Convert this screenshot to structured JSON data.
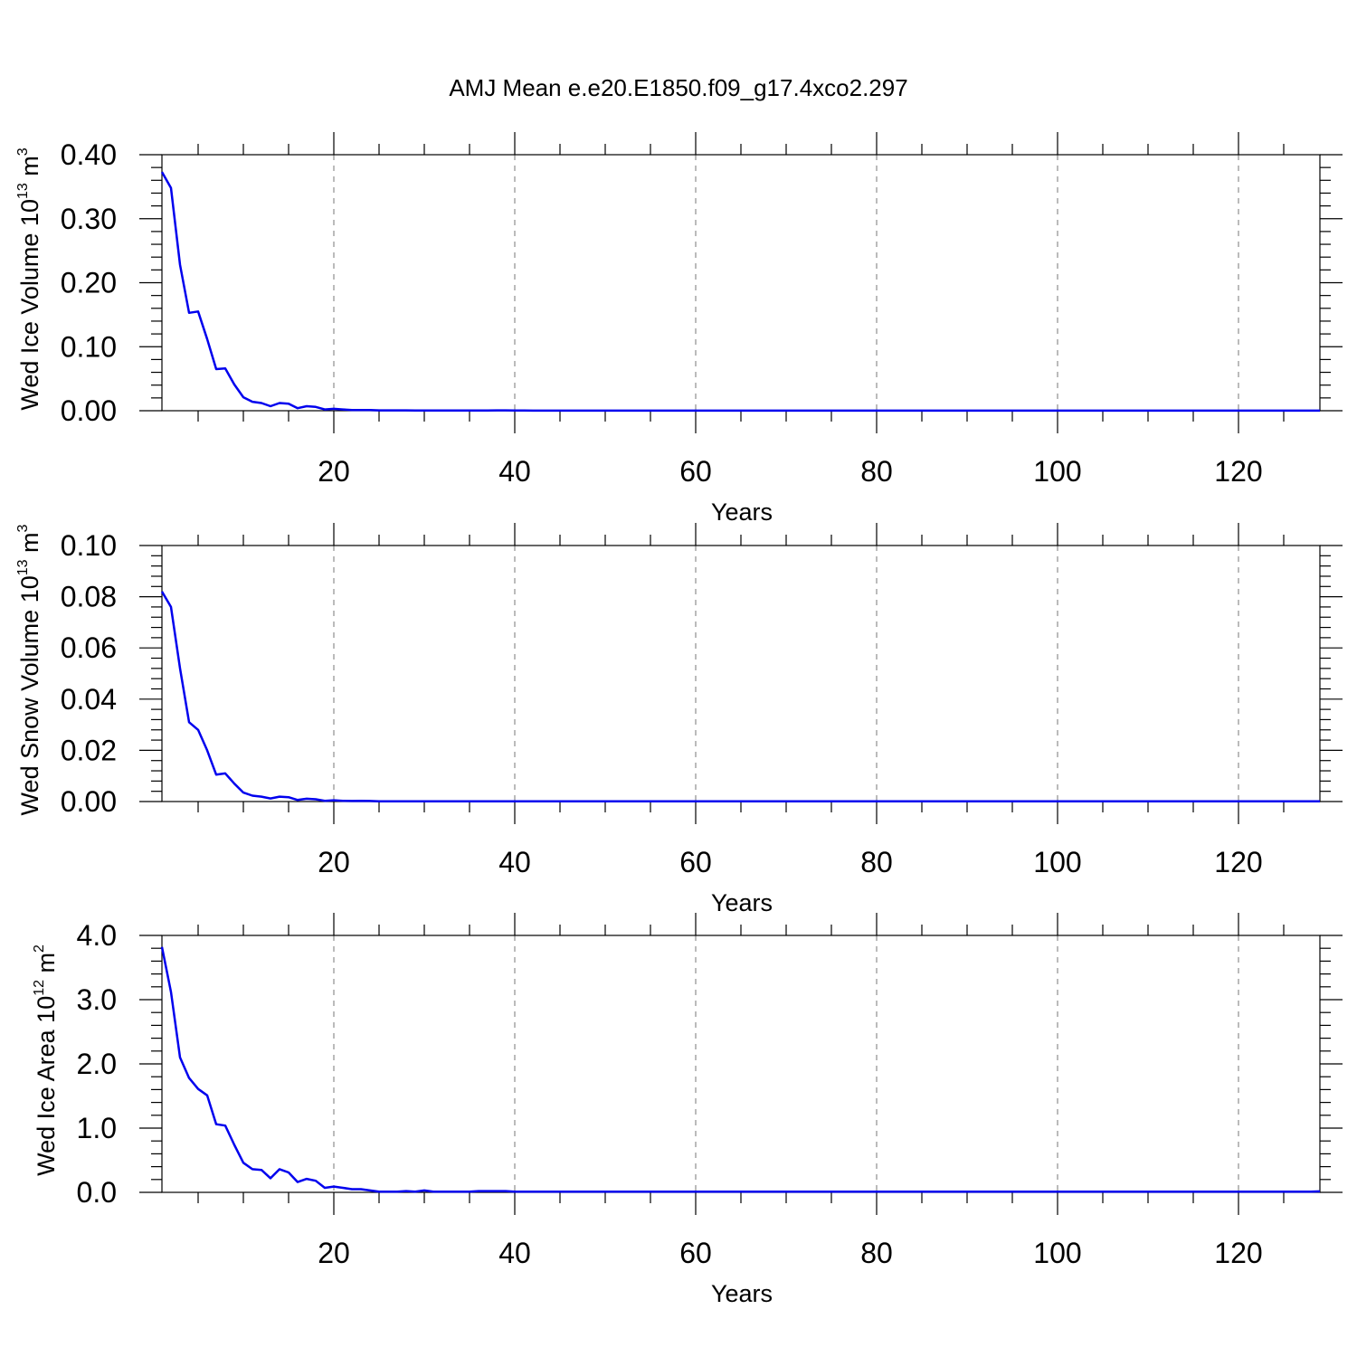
{
  "title": "AMJ Mean e.e20.E1850.f09_g17.4xco2.297",
  "colors": {
    "series": "#0000ee",
    "axis": "#000000",
    "grid": "#777777"
  },
  "chart_data": [
    {
      "type": "line",
      "xlabel": "Years",
      "ylabel": {
        "text": "Wed Ice Volume 10",
        "exp": "13",
        "unit": " m",
        "unit_exp": "3"
      },
      "xlim": [
        1,
        129
      ],
      "ylim": [
        0,
        0.4
      ],
      "xticks": [
        20,
        40,
        60,
        80,
        100,
        120
      ],
      "yticks": [
        "0.00",
        "0.10",
        "0.20",
        "0.30",
        "0.40"
      ],
      "grid": "vertical dashed at major x ticks",
      "series": [
        {
          "values": [
            0.373,
            0.348,
            0.228,
            0.153,
            0.155,
            0.112,
            0.065,
            0.066,
            0.041,
            0.021,
            0.014,
            0.012,
            0.007,
            0.012,
            0.011,
            0.004,
            0.007,
            0.006,
            0.002,
            0.003,
            0.002,
            0.001,
            0.001,
            0.001,
            0.0005,
            0.0005,
            0.0005,
            0.0005,
            0.0004,
            0.0004,
            0.0003,
            0.0003,
            0.0003,
            0.0003,
            0.0003,
            0.0003,
            0.0004,
            0.0005,
            0.0005,
            0.0004,
            0.0003,
            0.0002,
            0.0002,
            0.0002,
            0.0002,
            0.0002,
            0.0002,
            0.0002,
            0.0002,
            0.0002,
            0.0002,
            0.0002,
            0.0002,
            0.0002,
            0.0002,
            0.0002,
            0.0002,
            0.0002,
            0.0002,
            0.0002,
            0.0002,
            0.0002,
            0.0002,
            0.0002,
            0.0002,
            0.0002,
            0.0002,
            0.0002,
            0.0002,
            0.0002,
            0.0002,
            0.0002,
            0.0002,
            0.0002,
            0.0002,
            0.0002,
            0.0002,
            0.0002,
            0.0002,
            0.0002,
            0.0002,
            0.0002,
            0.0002,
            0.0002,
            0.0002,
            0.0002,
            0.0002,
            0.0002,
            0.0002,
            0.0002,
            0.0002,
            0.0002,
            0.0002,
            0.0002,
            0.0002,
            0.0002,
            0.0002,
            0.0002,
            0.0002,
            0.0002,
            0.0002,
            0.0002,
            0.0002,
            0.0002,
            0.0002,
            0.0002,
            0.0002,
            0.0002,
            0.0002,
            0.0002,
            0.0002,
            0.0002,
            0.0002,
            0.0002,
            0.0002,
            0.0002,
            0.0002,
            0.0002,
            0.0002,
            0.0002,
            0.0002,
            0.0002,
            0.0002,
            0.0002,
            0.0002,
            0.0002,
            0.0002,
            0.0002,
            0.0002
          ]
        }
      ]
    },
    {
      "type": "line",
      "xlabel": "Years",
      "ylabel": {
        "text": "Wed Snow Volume 10",
        "exp": "13",
        "unit": " m",
        "unit_exp": "3"
      },
      "xlim": [
        1,
        129
      ],
      "ylim": [
        0,
        0.1
      ],
      "xticks": [
        20,
        40,
        60,
        80,
        100,
        120
      ],
      "yticks": [
        "0.00",
        "0.02",
        "0.04",
        "0.06",
        "0.08",
        "0.10"
      ],
      "grid": "vertical dashed at major x ticks",
      "series": [
        {
          "values": [
            0.082,
            0.076,
            0.052,
            0.031,
            0.028,
            0.02,
            0.0105,
            0.011,
            0.007,
            0.0035,
            0.0023,
            0.0019,
            0.0012,
            0.0019,
            0.0017,
            0.0006,
            0.0011,
            0.0009,
            0.0003,
            0.0005,
            0.0003,
            0.0002,
            0.0003,
            0.0002,
            0.0001,
            0.0001,
            0.0001,
            0.0001,
            0.0001,
            0.0001,
            0.0001,
            0.0001,
            0.0001,
            0.0001,
            0.0001,
            0.0001,
            0.0001,
            0.0001,
            0.0001,
            0.0001,
            0.0001,
            0.0001,
            0.0001,
            0.0001,
            0.0001,
            0.0001,
            0.0001,
            0.0001,
            0.0001,
            0.0001,
            0.0001,
            0.0001,
            0.0001,
            0.0001,
            0.0001,
            0.0001,
            0.0001,
            0.0001,
            0.0001,
            0.0001,
            0.0001,
            0.0001,
            0.0001,
            0.0001,
            0.0001,
            0.0001,
            0.0001,
            0.0001,
            0.0001,
            0.0001,
            0.0001,
            0.0001,
            0.0001,
            0.0001,
            0.0001,
            0.0001,
            0.0001,
            0.0001,
            0.0001,
            0.0001,
            0.0001,
            0.0001,
            0.0001,
            0.0001,
            0.0001,
            0.0001,
            0.0001,
            0.0001,
            0.0001,
            0.0001,
            0.0001,
            0.0001,
            0.0001,
            0.0001,
            0.0001,
            0.0001,
            0.0001,
            0.0001,
            0.0001,
            0.0001,
            0.0001,
            0.0001,
            0.0001,
            0.0001,
            0.0001,
            0.0001,
            0.0001,
            0.0001,
            0.0001,
            0.0001,
            0.0001,
            0.0001,
            0.0001,
            0.0001,
            0.0001,
            0.0001,
            0.0001,
            0.0001,
            0.0001,
            0.0001,
            0.0001,
            0.0001,
            0.0001,
            0.0001,
            0.0001,
            0.0001,
            0.0001,
            0.0001,
            0.0001
          ]
        }
      ]
    },
    {
      "type": "line",
      "xlabel": "Years",
      "ylabel": {
        "text": "Wed Ice Area 10",
        "exp": "12",
        "unit": " m",
        "unit_exp": "2"
      },
      "xlim": [
        1,
        129
      ],
      "ylim": [
        0,
        4.0
      ],
      "xticks": [
        20,
        40,
        60,
        80,
        100,
        120
      ],
      "yticks": [
        "0.0",
        "1.0",
        "2.0",
        "3.0",
        "4.0"
      ],
      "grid": "vertical dashed at major x ticks",
      "series": [
        {
          "values": [
            3.82,
            3.12,
            2.1,
            1.78,
            1.61,
            1.51,
            1.06,
            1.04,
            0.74,
            0.46,
            0.36,
            0.35,
            0.22,
            0.36,
            0.31,
            0.16,
            0.21,
            0.18,
            0.07,
            0.09,
            0.07,
            0.05,
            0.05,
            0.03,
            0.01,
            0.01,
            0.01,
            0.02,
            0.01,
            0.03,
            0.01,
            0.01,
            0.01,
            0.01,
            0.01,
            0.02,
            0.02,
            0.02,
            0.02,
            0.01,
            0.01,
            0.01,
            0.01,
            0.01,
            0.01,
            0.01,
            0.01,
            0.01,
            0.01,
            0.01,
            0.01,
            0.01,
            0.01,
            0.01,
            0.01,
            0.01,
            0.01,
            0.01,
            0.01,
            0.01,
            0.01,
            0.01,
            0.01,
            0.01,
            0.01,
            0.01,
            0.01,
            0.01,
            0.01,
            0.01,
            0.01,
            0.01,
            0.01,
            0.01,
            0.01,
            0.01,
            0.01,
            0.01,
            0.01,
            0.01,
            0.01,
            0.01,
            0.01,
            0.01,
            0.01,
            0.01,
            0.01,
            0.01,
            0.01,
            0.01,
            0.01,
            0.01,
            0.01,
            0.01,
            0.01,
            0.01,
            0.01,
            0.01,
            0.01,
            0.01,
            0.01,
            0.01,
            0.01,
            0.01,
            0.01,
            0.01,
            0.01,
            0.01,
            0.01,
            0.01,
            0.01,
            0.01,
            0.01,
            0.01,
            0.01,
            0.01,
            0.01,
            0.01,
            0.01,
            0.01,
            0.01,
            0.01,
            0.01,
            0.01,
            0.01,
            0.01,
            0.01,
            0.01,
            0.015
          ]
        }
      ]
    }
  ]
}
